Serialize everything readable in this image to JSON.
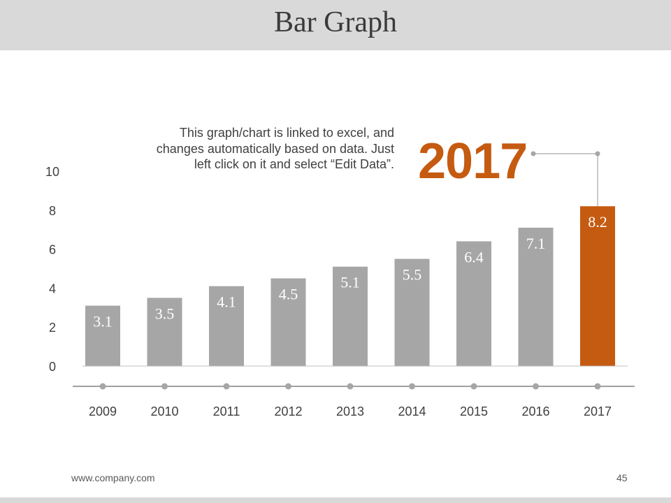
{
  "slide": {
    "title": "Bar Graph",
    "note": "This graph/chart is linked to excel, and changes automatically based on data. Just left click on it and select “Edit Data”.",
    "highlight_year": "2017",
    "footer_url": "www.company.com",
    "page_number": "45"
  },
  "colors": {
    "bar": "#a6a6a6",
    "highlight": "#c55a11",
    "axis": "#bfbfbf",
    "timeline": "#808080",
    "dot": "#a6a6a6",
    "value_label": "#ffffff",
    "tick_label": "#404040"
  },
  "chart_data": {
    "type": "bar",
    "title": "Bar Graph",
    "categories": [
      "2009",
      "2010",
      "2011",
      "2012",
      "2013",
      "2014",
      "2015",
      "2016",
      "2017"
    ],
    "values": [
      3.1,
      3.5,
      4.1,
      4.5,
      5.1,
      5.5,
      6.4,
      7.1,
      8.2
    ],
    "value_labels": [
      "3.1",
      "3.5",
      "4.1",
      "4.5",
      "5.1",
      "5.5",
      "6.4",
      "7.1",
      "8.2"
    ],
    "highlight_category": "2017",
    "y_ticks": [
      0,
      2,
      4,
      6,
      8,
      10
    ],
    "ylim": [
      0,
      10
    ],
    "xlabel": "",
    "ylabel": "",
    "grid": false,
    "legend": "none"
  }
}
